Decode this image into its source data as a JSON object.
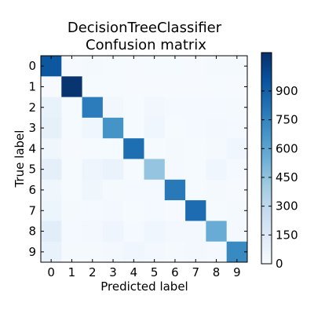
{
  "chart_data": {
    "type": "heatmap",
    "title": [
      "DecisionTreeClassifier",
      "Confusion matrix"
    ],
    "xlabel": "Predicted label",
    "ylabel": "True label",
    "x_categories": [
      "0",
      "1",
      "2",
      "3",
      "4",
      "5",
      "6",
      "7",
      "8",
      "9"
    ],
    "y_categories": [
      "0",
      "1",
      "2",
      "3",
      "4",
      "5",
      "6",
      "7",
      "8",
      "9"
    ],
    "colormap": "Blues",
    "colorbar": {
      "range": [
        0,
        1100
      ],
      "ticks": [
        0,
        150,
        300,
        450,
        600,
        750,
        900
      ],
      "tick_labels": [
        "0",
        "150",
        "300",
        "450",
        "600",
        "750",
        "900"
      ]
    },
    "matrix": [
      [
        935,
        5,
        15,
        10,
        5,
        10,
        10,
        5,
        15,
        15
      ],
      [
        5,
        1085,
        10,
        10,
        5,
        5,
        5,
        5,
        10,
        5
      ],
      [
        80,
        10,
        780,
        35,
        10,
        35,
        20,
        20,
        20,
        15
      ],
      [
        95,
        10,
        40,
        680,
        10,
        40,
        10,
        20,
        30,
        20
      ],
      [
        45,
        5,
        10,
        10,
        840,
        10,
        15,
        10,
        15,
        40
      ],
      [
        105,
        10,
        50,
        70,
        10,
        440,
        20,
        10,
        40,
        20
      ],
      [
        45,
        10,
        45,
        15,
        20,
        20,
        790,
        10,
        15,
        5
      ],
      [
        55,
        15,
        20,
        30,
        10,
        20,
        5,
        845,
        10,
        15
      ],
      [
        120,
        20,
        25,
        50,
        20,
        40,
        25,
        25,
        560,
        20
      ],
      [
        80,
        15,
        15,
        25,
        40,
        25,
        15,
        30,
        20,
        720
      ]
    ]
  }
}
